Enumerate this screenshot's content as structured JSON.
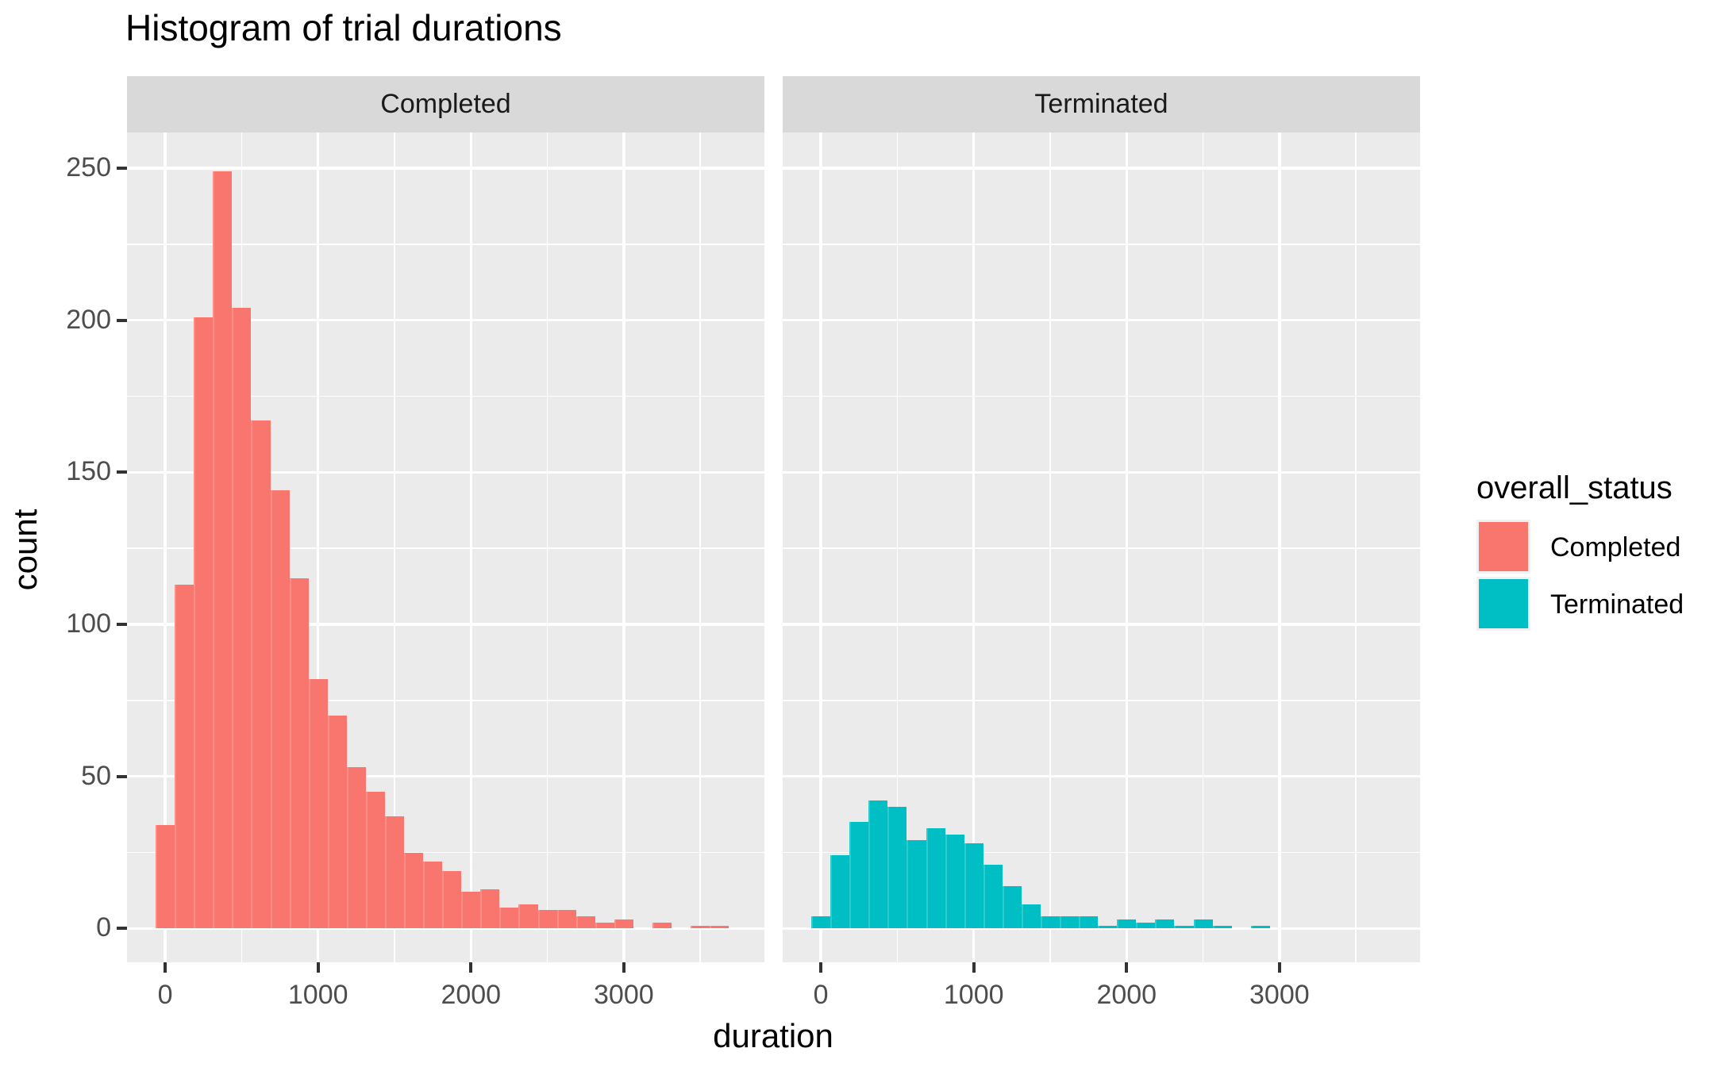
{
  "title": "Histogram of trial durations",
  "axes": {
    "x_label": "duration",
    "y_label": "count"
  },
  "facets": {
    "left": "Completed",
    "right": "Terminated"
  },
  "legend": {
    "title": "overall_status",
    "items": [
      {
        "label": "Completed",
        "color": "#F8766D"
      },
      {
        "label": "Terminated",
        "color": "#00BFC4"
      }
    ]
  },
  "colors": {
    "completed_fill": "#F8766D",
    "terminated_fill": "#00BFC4",
    "panel_background": "#EBEBEB",
    "strip_background": "#D9D9D9",
    "gridline": "#FFFFFF",
    "tick_mark": "#333333",
    "tick_text": "#4D4D4D"
  },
  "chart_data": {
    "type": "bar",
    "subtype": "histogram-faceted",
    "title": "Histogram of trial durations",
    "xlabel": "duration",
    "ylabel": "count",
    "facet_values": [
      "Completed",
      "Terminated"
    ],
    "bin_start": -62.5,
    "bin_width": 125,
    "x_ticks": [
      0,
      1000,
      2000,
      3000
    ],
    "y_ticks": [
      0,
      50,
      100,
      150,
      200,
      250
    ],
    "x_minor_gridlines": [
      500,
      1500,
      2500,
      3500
    ],
    "y_minor_gridlines": [
      25,
      75,
      125,
      175,
      225
    ],
    "x_range": [
      -250,
      3920
    ],
    "y_range": [
      -11.1,
      261.7
    ],
    "grid": true,
    "legend_position": "right",
    "series": [
      {
        "name": "Completed",
        "color": "#F8766D",
        "counts": [
          34,
          113,
          201,
          249,
          204,
          167,
          144,
          115,
          82,
          70,
          53,
          45,
          37,
          25,
          22,
          19,
          12,
          13,
          7,
          8,
          6,
          6,
          4,
          2,
          3,
          0,
          2,
          0,
          1,
          1
        ]
      },
      {
        "name": "Terminated",
        "color": "#00BFC4",
        "counts": [
          4,
          24,
          35,
          42,
          40,
          29,
          33,
          31,
          28,
          21,
          14,
          8,
          4,
          4,
          4,
          1,
          3,
          2,
          3,
          1,
          3,
          1,
          0,
          1,
          0,
          0,
          0,
          0,
          0,
          0
        ]
      }
    ]
  }
}
